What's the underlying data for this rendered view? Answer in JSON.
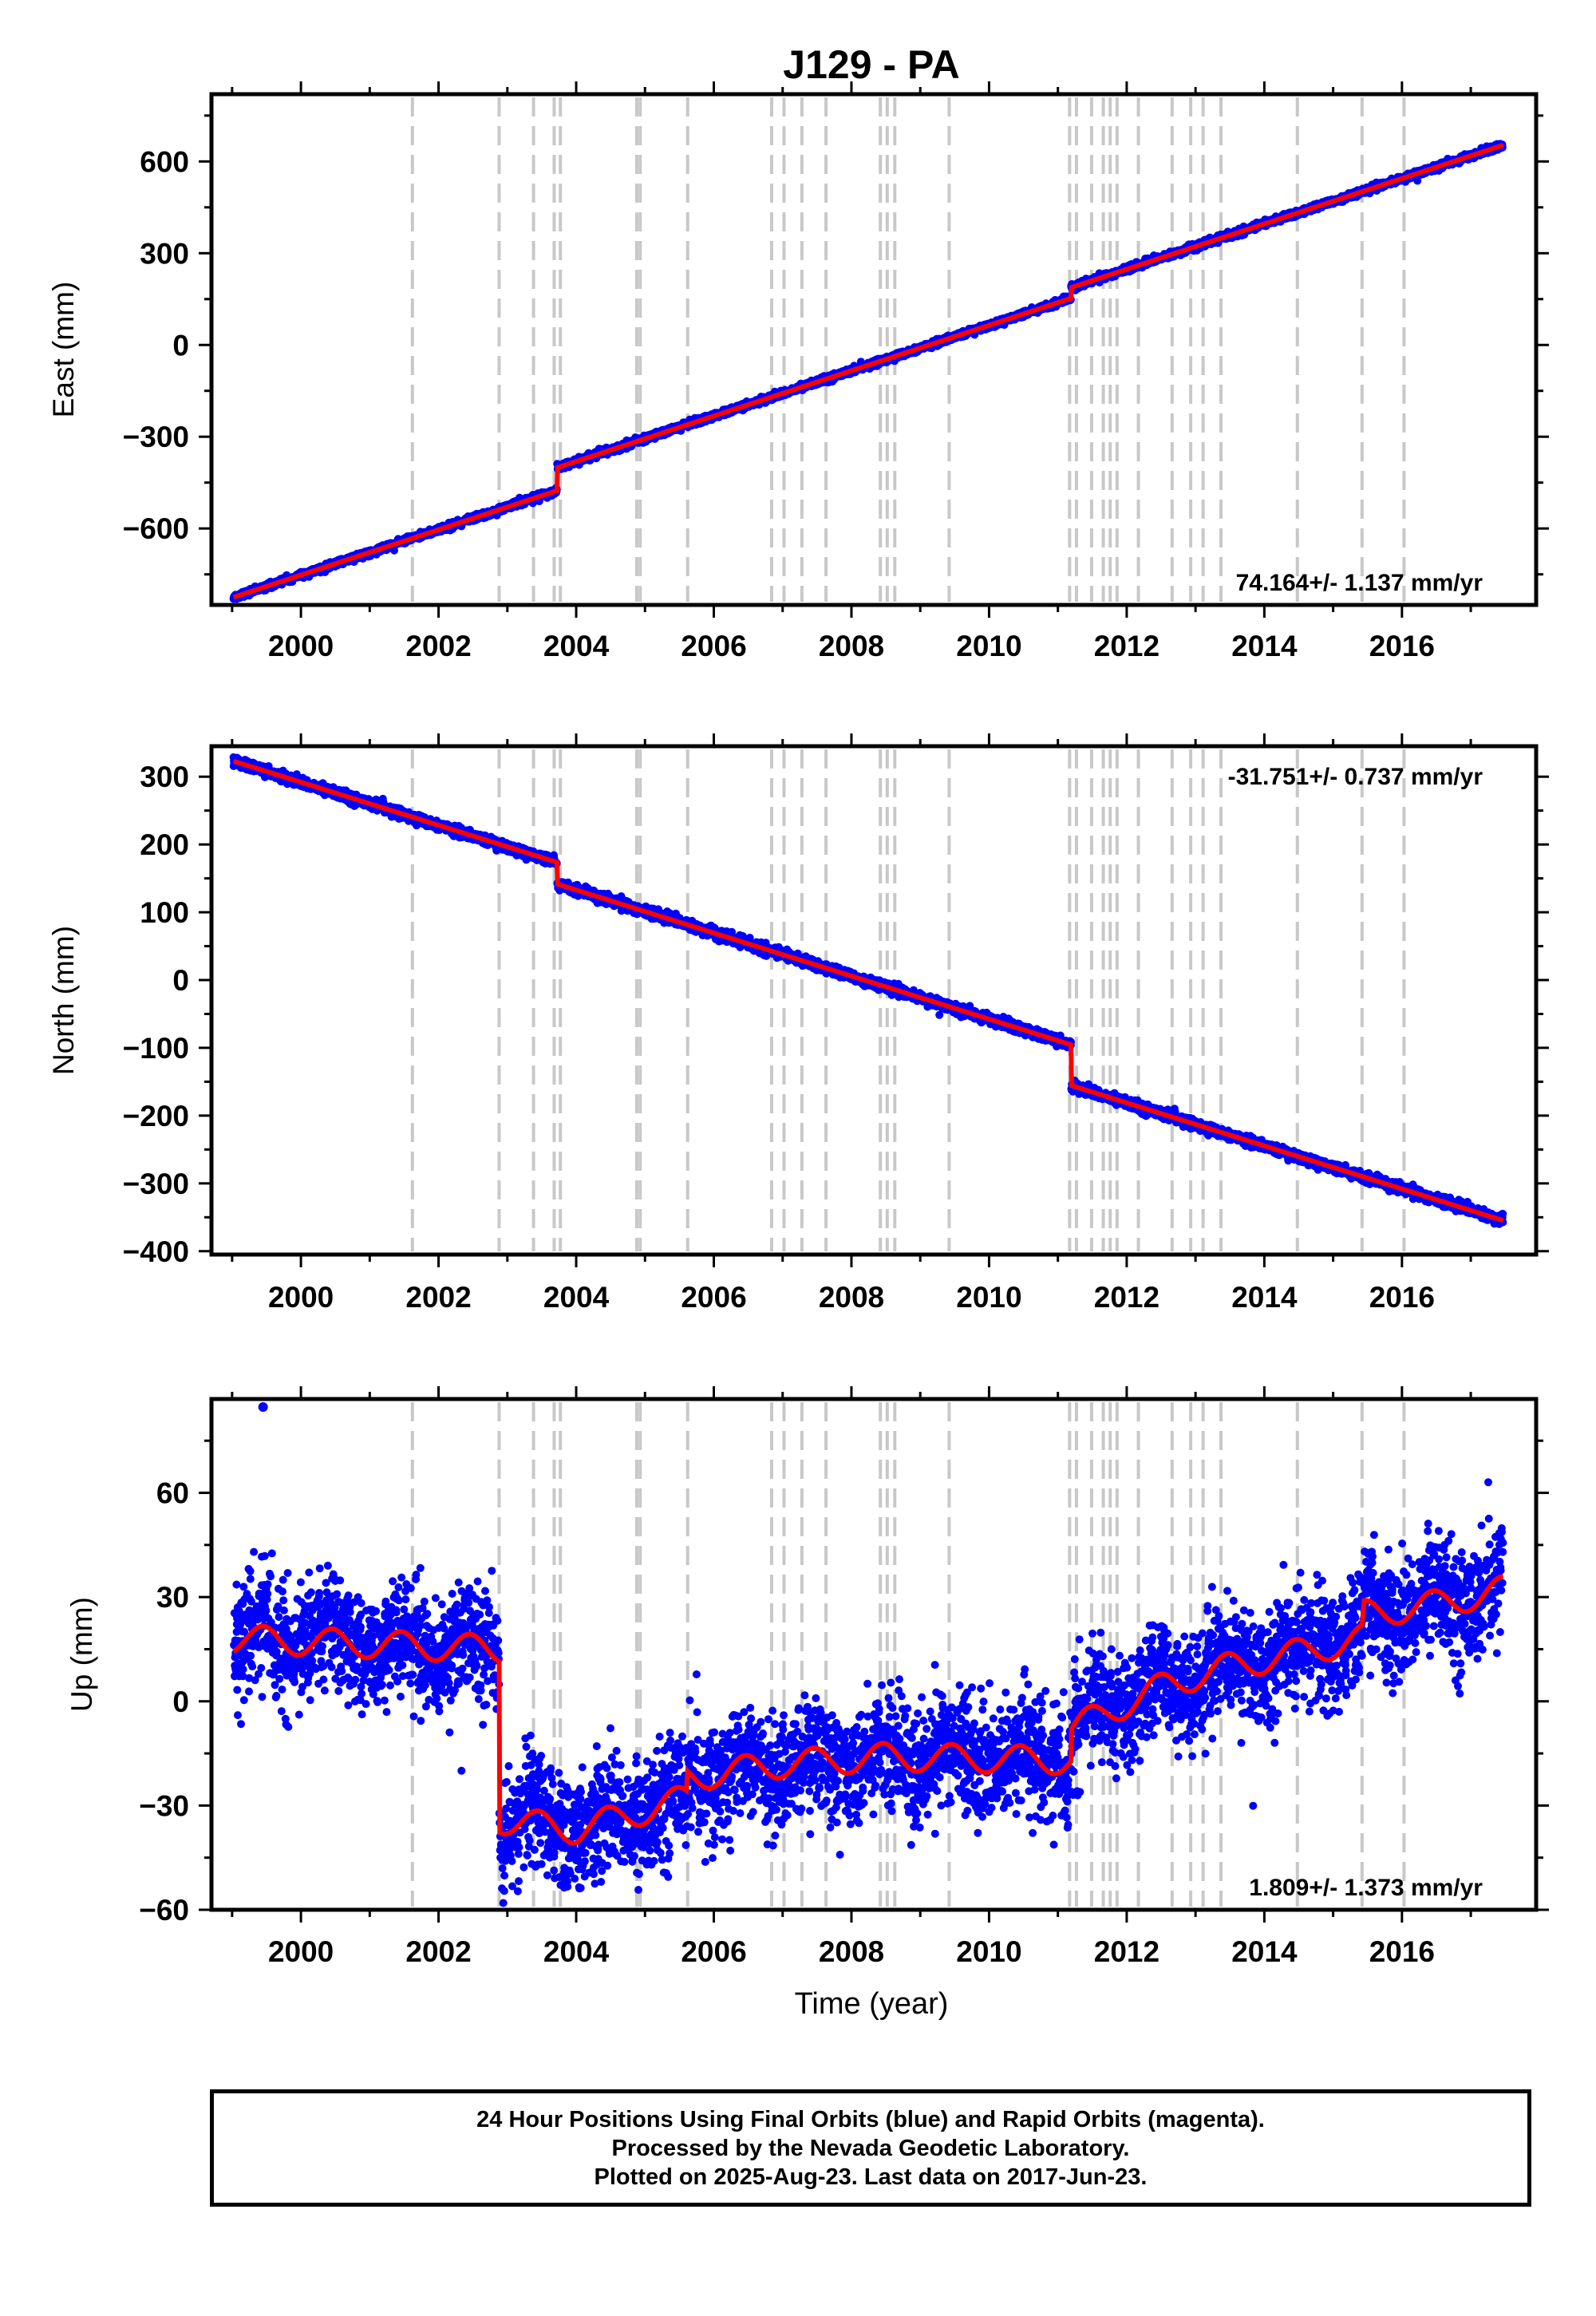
{
  "colors": {
    "data": "#0000ff",
    "model": "#ff0000",
    "breaks": "#c8c8c8",
    "frame": "#000000"
  },
  "chart_data": {
    "type": "scatter",
    "title": "J129 - PA",
    "xlabel": "Time (year)",
    "xlim": [
      1998.7,
      2017.95
    ],
    "xticks": [
      2000,
      2002,
      2004,
      2006,
      2008,
      2010,
      2012,
      2014,
      2016
    ],
    "x_minor_tick_step": 1,
    "break_lines": [
      2001.62,
      2002.88,
      2003.38,
      2003.68,
      2003.77,
      2004.88,
      2004.93,
      2005.62,
      2006.84,
      2007.02,
      2007.28,
      2007.63,
      2008.42,
      2008.52,
      2008.63,
      2009.42,
      2011.17,
      2011.27,
      2011.49,
      2011.66,
      2011.76,
      2011.86,
      2012.17,
      2012.66,
      2012.93,
      2013.11,
      2013.37,
      2014.48,
      2015.42,
      2016.03
    ],
    "data_start": 1999.02,
    "data_end": 2017.47,
    "panels": [
      {
        "ylabel": "East (mm)",
        "ylim": [
          -850,
          820
        ],
        "yticks": [
          -600,
          -300,
          0,
          300,
          600
        ],
        "ytick_labels": [
          "−600",
          "−300",
          "0",
          "300",
          "600"
        ],
        "y_minor_tick_step": 150,
        "rate_text": "74.164+/- 1.137 mm/yr",
        "rate_position": "bottom-right",
        "series": [
          {
            "name": "daily positions (final orbits)",
            "render": "points",
            "noise_mm": 5
          },
          {
            "name": "model fit",
            "render": "line",
            "start_value": -825,
            "rate_mm_per_yr": 74.164,
            "offsets": [
              {
                "x": 2003.72,
                "dy": 75
              },
              {
                "x": 2011.19,
                "dy": 35
              }
            ],
            "annual_amplitude": 0
          }
        ]
      },
      {
        "ylabel": "North (mm)",
        "ylim": [
          -405,
          345
        ],
        "yticks": [
          -400,
          -300,
          -200,
          -100,
          0,
          100,
          200,
          300
        ],
        "ytick_labels": [
          "−400",
          "−300",
          "−200",
          "−100",
          "0",
          "100",
          "200",
          "300"
        ],
        "y_minor_tick_step": 50,
        "rate_text": "-31.751+/- 0.737 mm/yr",
        "rate_position": "top-right",
        "series": [
          {
            "name": "daily positions (final orbits)",
            "render": "points",
            "noise_mm": 3.5
          },
          {
            "name": "model fit",
            "render": "line",
            "start_value": 323,
            "rate_mm_per_yr": -31.751,
            "offsets": [
              {
                "x": 2003.72,
                "dy": -32
              },
              {
                "x": 2011.19,
                "dy": -60
              }
            ],
            "annual_amplitude": 0
          }
        ]
      },
      {
        "ylabel": "Up (mm)",
        "ylim": [
          -60,
          87
        ],
        "yticks": [
          -60,
          -30,
          0,
          30,
          60
        ],
        "ytick_labels": [
          "−60",
          "−30",
          "0",
          "30",
          "60"
        ],
        "y_minor_tick_step": 15,
        "rate_text": "1.809+/- 1.373 mm/yr",
        "rate_position": "bottom-right",
        "series": [
          {
            "name": "daily positions (final orbits)",
            "render": "points",
            "noise_mm": 8
          },
          {
            "name": "model fit",
            "render": "line",
            "segments": [
              {
                "from": 1999.02,
                "to": 2002.88,
                "values": [
                  [
                    1999.0,
                    18
                  ],
                  [
                    2002.88,
                    15
                  ]
                ]
              },
              {
                "from": 2002.88,
                "to": 2011.19,
                "values": [
                  [
                    2002.88,
                    -34
                  ],
                  [
                    2004.0,
                    -37
                  ],
                  [
                    2005.6,
                    -28
                  ],
                  [
                    2005.62,
                    -22
                  ],
                  [
                    2007.0,
                    -18
                  ],
                  [
                    2008.5,
                    -16
                  ],
                  [
                    2011.19,
                    -17
                  ]
                ]
              },
              {
                "from": 2011.19,
                "to": 2017.47,
                "values": [
                  [
                    2011.19,
                    -8
                  ],
                  [
                    2012.6,
                    5
                  ],
                  [
                    2013.5,
                    10
                  ],
                  [
                    2014.5,
                    14
                  ],
                  [
                    2015.42,
                    18
                  ],
                  [
                    2015.45,
                    25
                  ],
                  [
                    2016.5,
                    28
                  ],
                  [
                    2017.47,
                    32
                  ]
                ]
              }
            ],
            "annual_amplitude": 4
          },
          {
            "name": "outlier",
            "render": "points",
            "x": [
              1999.45
            ],
            "y": [
              87
            ]
          }
        ]
      }
    ]
  },
  "footer": {
    "line1": "24 Hour Positions Using Final Orbits (blue) and Rapid Orbits (magenta).",
    "line2": "Processed by the Nevada Geodetic Laboratory.",
    "line3": "Plotted on 2025-Aug-23. Last data on 2017-Jun-23."
  }
}
